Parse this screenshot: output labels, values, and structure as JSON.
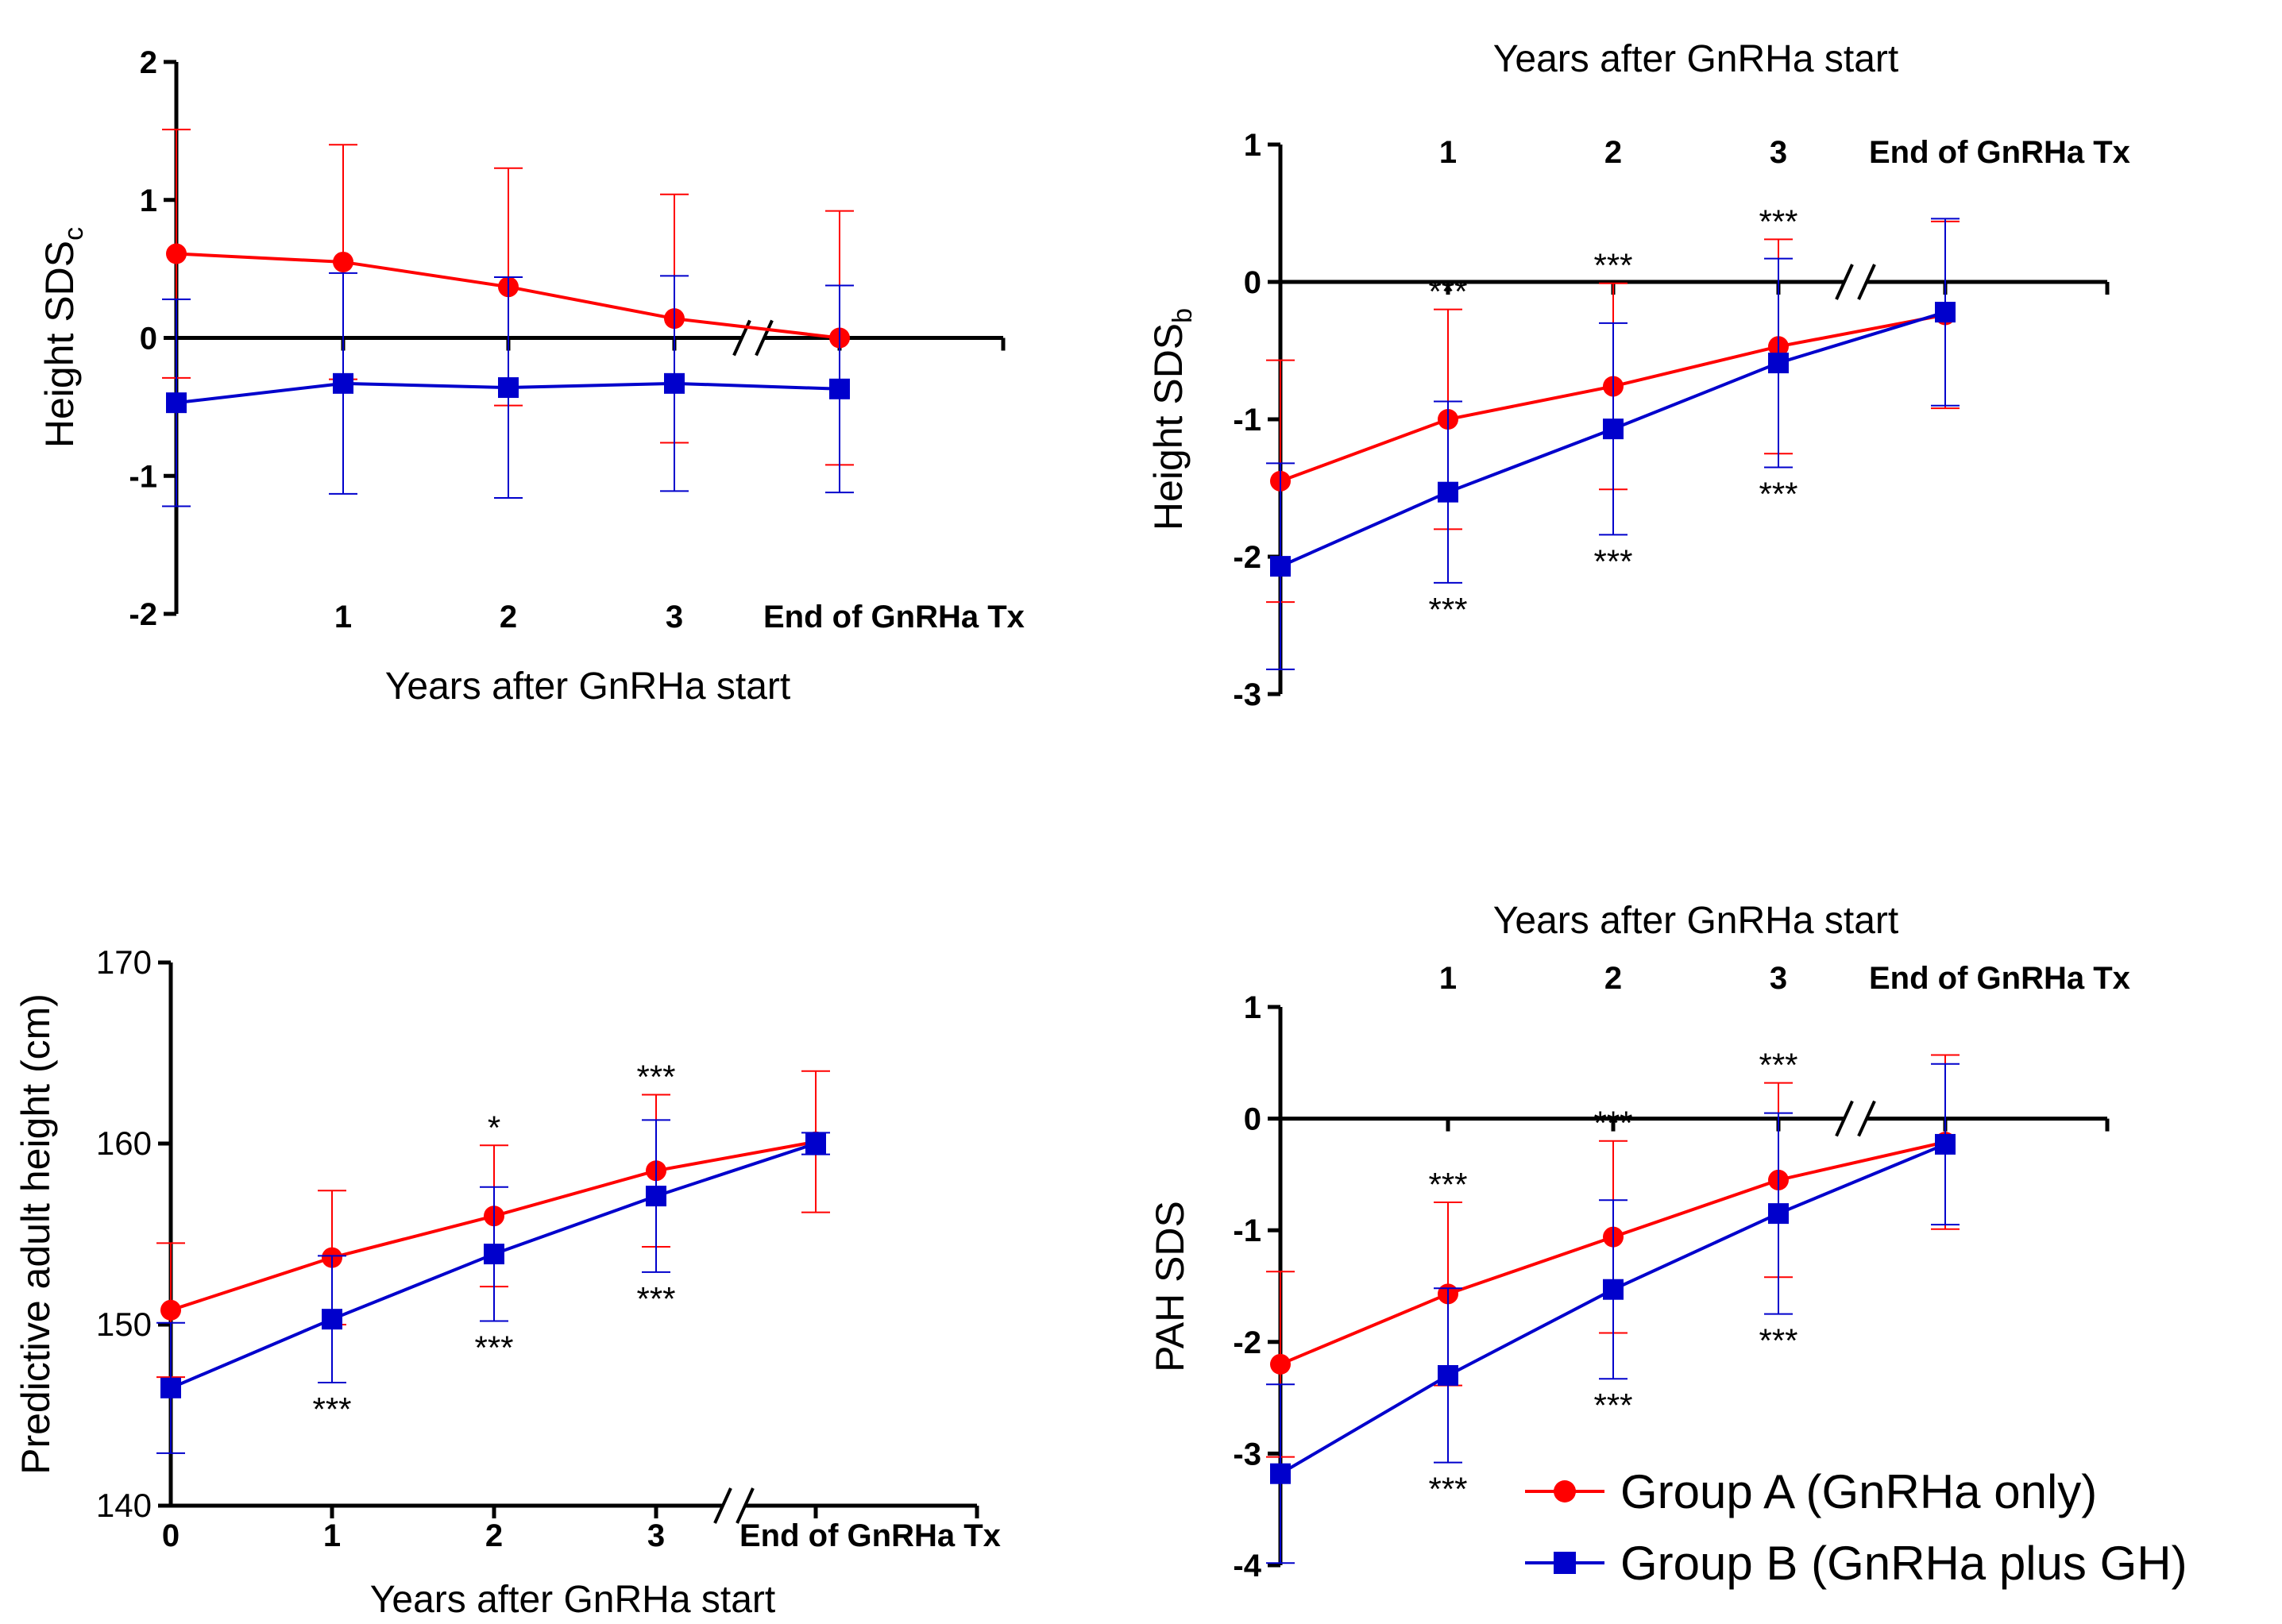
{
  "colors": {
    "group_a": "#ff0000",
    "group_b": "#0000cc",
    "axis": "#000000"
  },
  "chart_data": [
    {
      "type": "line",
      "title": "",
      "xlabel": "Years after GnRHa start",
      "ylabel": "Height SDS",
      "ylabel_subscript": "c",
      "ylim": [
        -2,
        2
      ],
      "yticks": [
        "2",
        "1",
        "0",
        "-1",
        "-2"
      ],
      "categories": [
        "",
        "1",
        "2",
        "3",
        "End of GnRHa Tx"
      ],
      "series": [
        {
          "name": "Group A (GnRHa only)",
          "values": [
            0.61,
            0.55,
            0.37,
            0.14,
            0.0
          ],
          "err": [
            0.9,
            0.85,
            0.86,
            0.9,
            0.92
          ]
        },
        {
          "name": "Group B (GnRHa plus GH)",
          "values": [
            -0.47,
            -0.33,
            -0.36,
            -0.33,
            -0.37
          ],
          "err": [
            0.75,
            0.8,
            0.8,
            0.78,
            0.75
          ]
        }
      ],
      "annotations_above": [
        "",
        "",
        "",
        "",
        ""
      ],
      "annotations_below": [
        "",
        "",
        "",
        "",
        ""
      ]
    },
    {
      "type": "line",
      "title": "Years after GnRHa start",
      "xlabel": "",
      "ylabel": "Height SDS",
      "ylabel_subscript": "b",
      "ylim": [
        -3,
        1
      ],
      "yticks": [
        "1",
        "0",
        "-1",
        "-2",
        "-3"
      ],
      "categories": [
        "",
        "1",
        "2",
        "3",
        "End of GnRHa Tx"
      ],
      "series": [
        {
          "name": "Group A (GnRHa only)",
          "values": [
            -1.45,
            -1.0,
            -0.76,
            -0.47,
            -0.24
          ],
          "err": [
            0.88,
            0.8,
            0.75,
            0.78,
            0.68
          ]
        },
        {
          "name": "Group B (GnRHa plus GH)",
          "values": [
            -2.07,
            -1.53,
            -1.07,
            -0.59,
            -0.22
          ],
          "err": [
            0.75,
            0.66,
            0.77,
            0.76,
            0.68
          ]
        }
      ],
      "annotations_above": [
        "",
        "***",
        "***",
        "***",
        ""
      ],
      "annotations_below": [
        "",
        "***",
        "***",
        "***",
        ""
      ]
    },
    {
      "type": "line",
      "title": "",
      "xlabel": "Years after GnRHa start",
      "ylabel": "Predictive adult height (cm)",
      "ylim": [
        140,
        170
      ],
      "yticks": [
        "170",
        "160",
        "150",
        "140"
      ],
      "categories": [
        "0",
        "1",
        "2",
        "3",
        "End of GnRHa Tx"
      ],
      "series": [
        {
          "name": "Group A (GnRHa only)",
          "values": [
            150.8,
            153.7,
            156.0,
            158.5,
            160.1
          ],
          "err": [
            3.7,
            3.7,
            3.9,
            4.2,
            3.9
          ]
        },
        {
          "name": "Group B (GnRHa plus GH)",
          "values": [
            146.5,
            150.3,
            153.9,
            157.1,
            160.0
          ],
          "err": [
            3.6,
            3.5,
            3.7,
            4.2,
            0.6
          ]
        }
      ],
      "annotations_above": [
        "",
        "",
        "*",
        "***",
        ""
      ],
      "annotations_below": [
        "",
        "***",
        "***",
        "***",
        ""
      ]
    },
    {
      "type": "line",
      "title": "Years after GnRHa start",
      "xlabel": "",
      "ylabel": "PAH SDS",
      "ylim": [
        -4,
        1
      ],
      "yticks": [
        "1",
        "0",
        "-1",
        "-2",
        "-3",
        "-4"
      ],
      "categories": [
        "",
        "1",
        "2",
        "3",
        "End of GnRHa Tx"
      ],
      "series": [
        {
          "name": "Group A (GnRHa only)",
          "values": [
            -2.2,
            -1.57,
            -1.06,
            -0.55,
            -0.21
          ],
          "err": [
            0.83,
            0.82,
            0.86,
            0.87,
            0.78
          ]
        },
        {
          "name": "Group B (GnRHa plus GH)",
          "values": [
            -3.18,
            -2.3,
            -1.53,
            -0.85,
            -0.23
          ],
          "err": [
            0.8,
            0.78,
            0.8,
            0.9,
            0.72
          ]
        }
      ],
      "annotations_above": [
        "",
        "***",
        "***",
        "***",
        ""
      ],
      "annotations_below": [
        "",
        "***",
        "***",
        "***",
        ""
      ]
    }
  ],
  "legend": {
    "entries": [
      "Group A (GnRHa only)",
      "Group B (GnRHa plus GH)"
    ],
    "placement": "bottom-right"
  }
}
